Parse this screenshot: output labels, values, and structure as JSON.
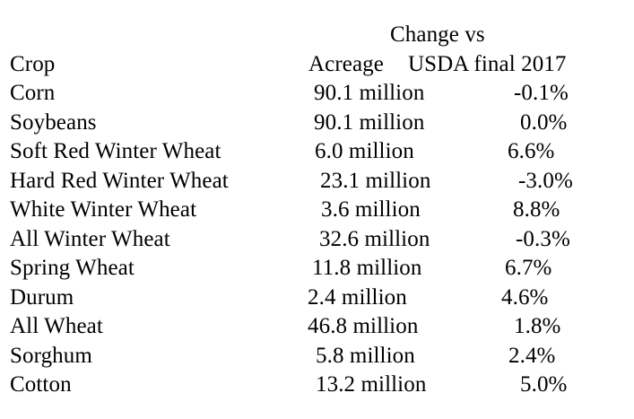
{
  "header": {
    "change_line1": "Change vs",
    "crop": "Crop",
    "acreage": "Acreage",
    "change_line2": "USDA final 2017"
  },
  "rows": [
    {
      "crop": "Corn",
      "acreage": "90.1 million",
      "change": "-0.1%"
    },
    {
      "crop": "Soybeans",
      "acreage": "90.1 million",
      "change": "0.0%"
    },
    {
      "crop": "Soft Red Winter Wheat",
      "acreage": "6.0 million",
      "change": "6.6%"
    },
    {
      "crop": "Hard Red Winter Wheat",
      "acreage": "23.1 million",
      "change": "-3.0%"
    },
    {
      "crop": "White Winter Wheat",
      "acreage": "3.6 million",
      "change": "8.8%"
    },
    {
      "crop": "All Winter Wheat",
      "acreage": "32.6 million",
      "change": "-0.3%"
    },
    {
      "crop": "Spring Wheat",
      "acreage": "11.8 million",
      "change": "6.7%"
    },
    {
      "crop": "Durum",
      "acreage": "2.4 million",
      "change": "4.6%"
    },
    {
      "crop": "All Wheat",
      "acreage": "46.8 million",
      "change": "1.8%"
    },
    {
      "crop": "Sorghum",
      "acreage": "5.8 million",
      "change": "2.4%"
    },
    {
      "crop": "Cotton",
      "acreage": "13.2 million",
      "change": "5.0%"
    }
  ]
}
